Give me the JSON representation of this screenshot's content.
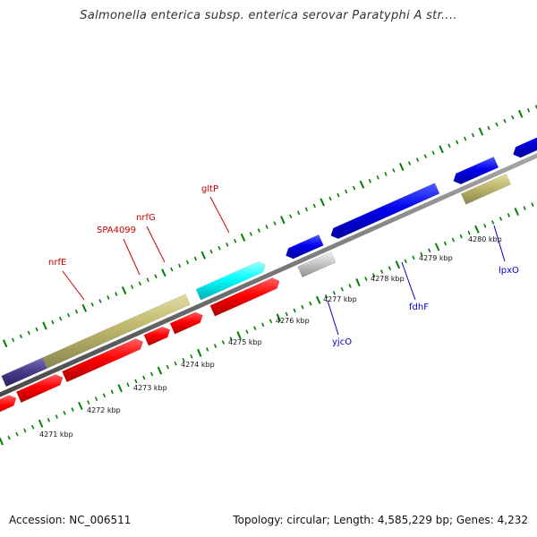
{
  "title": "Salmonella enterica subsp. enterica serovar Paratyphi A str....",
  "footer": {
    "accession": "Accession: NC_006511",
    "topology": "Topology: circular; Length: 4,585,229 bp; Genes: 4,232"
  },
  "colors": {
    "red": "#ff0000",
    "blue": "#0000ee",
    "cyan": "#00ffff",
    "khaki": "#bdb76b",
    "navy": "#483d8b",
    "grey": "#c8c8c8",
    "tick_green": "#008000",
    "backbone": "#777777"
  },
  "ticks": [
    {
      "label": "4271 kbp"
    },
    {
      "label": "4272 kbp"
    },
    {
      "label": "4273 kbp"
    },
    {
      "label": "4274 kbp"
    },
    {
      "label": "4275 kbp"
    },
    {
      "label": "4276 kbp"
    },
    {
      "label": "4277 kbp"
    },
    {
      "label": "4278 kbp"
    },
    {
      "label": "4279 kbp"
    },
    {
      "label": "4280 kbp"
    }
  ],
  "gene_labels": [
    {
      "name": "nrfE",
      "color": "#cc0000"
    },
    {
      "name": "SPA4099",
      "color": "#cc0000"
    },
    {
      "name": "nrfG",
      "color": "#cc0000"
    },
    {
      "name": "gltP",
      "color": "#cc0000"
    },
    {
      "name": "yjcO",
      "color": "#0000cc"
    },
    {
      "name": "fdhF",
      "color": "#0000cc"
    },
    {
      "name": "lpxO",
      "color": "#0000cc"
    }
  ]
}
